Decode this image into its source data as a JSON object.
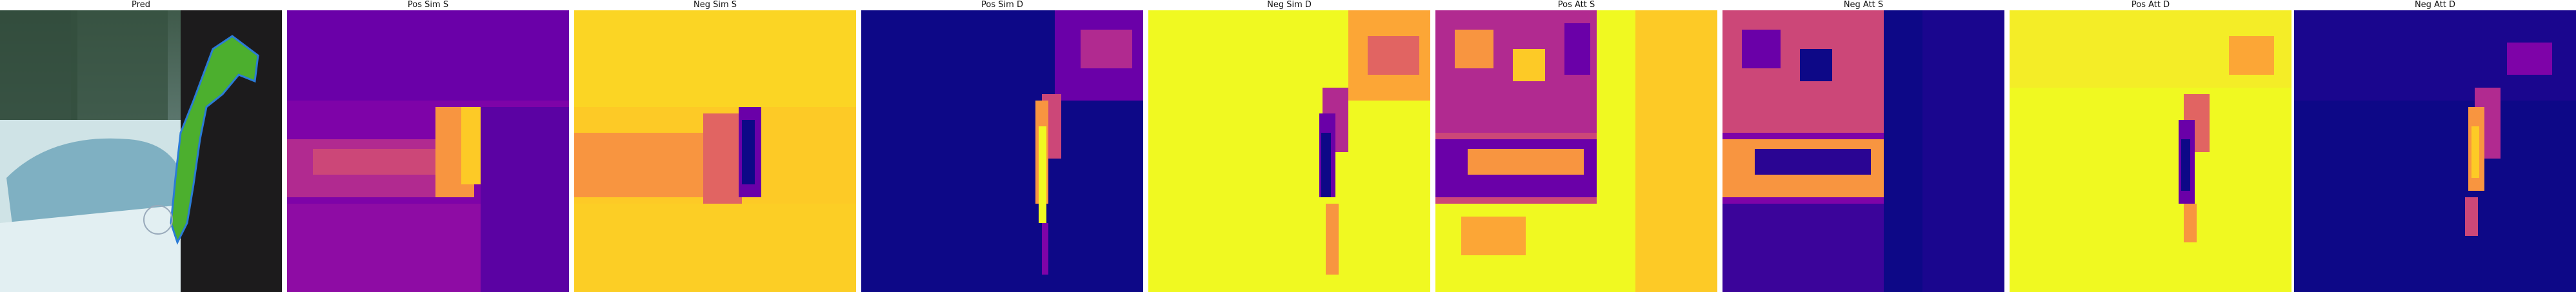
{
  "panels": [
    {
      "title": "Pred",
      "kind": "photo-with-mask"
    },
    {
      "title": "Pos Sim S",
      "kind": "heatmap",
      "colormap": "plasma"
    },
    {
      "title": "Neg Sim S",
      "kind": "heatmap",
      "colormap": "plasma"
    },
    {
      "title": "Pos Sim D",
      "kind": "heatmap",
      "colormap": "plasma"
    },
    {
      "title": "Neg Sim D",
      "kind": "heatmap",
      "colormap": "plasma"
    },
    {
      "title": "Pos Att S",
      "kind": "heatmap",
      "colormap": "plasma"
    },
    {
      "title": "Neg Att S",
      "kind": "heatmap",
      "colormap": "plasma"
    },
    {
      "title": "Pos Att D",
      "kind": "heatmap",
      "colormap": "plasma"
    },
    {
      "title": "Neg Att D",
      "kind": "heatmap",
      "colormap": "plasma"
    }
  ],
  "colors": {
    "plasma_dark": "#0d0887",
    "plasma_purple": "#7e03a8",
    "plasma_magenta": "#cc4778",
    "plasma_orange": "#f89540",
    "plasma_yellow": "#f0f921",
    "mask_green": "#4caf2e",
    "mask_outline": "#2b7bd6"
  }
}
